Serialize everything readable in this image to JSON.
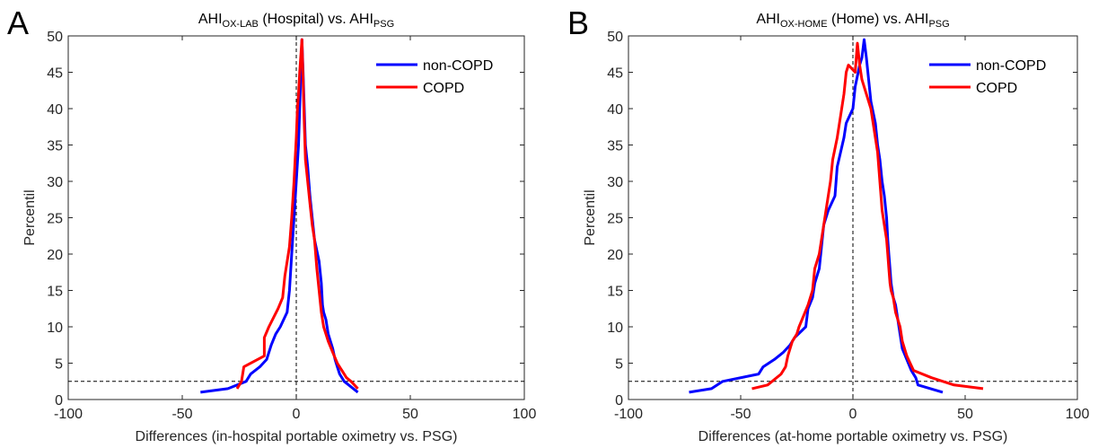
{
  "chart_data": [
    {
      "type": "line",
      "panel_label": "A",
      "title": {
        "part1": "AHI",
        "sub1": "OX-LAB",
        "part2": " (Hospital) vs. AHI",
        "sub2": "PSG"
      },
      "xlabel": "Differences (in-hospital portable oximetry vs. PSG)",
      "ylabel": "Percentil",
      "xlim": [
        -100,
        100
      ],
      "ylim": [
        0,
        50
      ],
      "xticks": [
        "-100",
        "-50",
        "0",
        "50",
        "100"
      ],
      "yticks": [
        "0",
        "5",
        "10",
        "15",
        "20",
        "25",
        "30",
        "35",
        "40",
        "45",
        "50"
      ],
      "reference_lines": {
        "x": 0,
        "y": 2.5
      },
      "legend_position": "top-right",
      "series": [
        {
          "name": "non-COPD",
          "color": "#0000ff",
          "points": [
            [
              -42,
              1
            ],
            [
              -30,
              1.5
            ],
            [
              -22,
              2.5
            ],
            [
              -20,
              3.5
            ],
            [
              -16,
              4.5
            ],
            [
              -13,
              5.5
            ],
            [
              -11,
              7.5
            ],
            [
              -9,
              9
            ],
            [
              -7,
              10
            ],
            [
              -4,
              12
            ],
            [
              -3,
              15
            ],
            [
              -2,
              20
            ],
            [
              -1,
              25
            ],
            [
              0,
              30
            ],
            [
              1,
              35
            ],
            [
              1.5,
              40
            ],
            [
              2,
              45
            ],
            [
              2.5,
              49.5
            ],
            [
              3,
              45
            ],
            [
              3.5,
              40
            ],
            [
              4,
              35
            ],
            [
              5,
              32
            ],
            [
              6,
              28
            ],
            [
              8,
              22
            ],
            [
              10,
              19
            ],
            [
              11,
              16
            ],
            [
              11.5,
              13
            ],
            [
              12,
              12
            ],
            [
              13,
              11
            ],
            [
              14,
              9
            ],
            [
              16,
              7
            ],
            [
              17,
              5.5
            ],
            [
              18,
              4.5
            ],
            [
              19,
              3.5
            ],
            [
              21,
              2.5
            ],
            [
              23,
              2
            ],
            [
              27,
              1
            ]
          ]
        },
        {
          "name": "COPD",
          "color": "#ff0000",
          "points": [
            [
              -26,
              1.5
            ],
            [
              -24,
              2.5
            ],
            [
              -23,
              4.5
            ],
            [
              -14,
              6
            ],
            [
              -14,
              8.5
            ],
            [
              -12,
              10
            ],
            [
              -8,
              12.5
            ],
            [
              -6,
              14
            ],
            [
              -5,
              17
            ],
            [
              -3,
              21
            ],
            [
              -2,
              25
            ],
            [
              -1,
              30
            ],
            [
              -0.5,
              33
            ],
            [
              0,
              36
            ],
            [
              0.5,
              40
            ],
            [
              1,
              42
            ],
            [
              1.5,
              45
            ],
            [
              2.5,
              49.5
            ],
            [
              3,
              44
            ],
            [
              3.5,
              38
            ],
            [
              4,
              33
            ],
            [
              5,
              30
            ],
            [
              6,
              27
            ],
            [
              7,
              24
            ],
            [
              8,
              22
            ],
            [
              9,
              18
            ],
            [
              10,
              15
            ],
            [
              11,
              12
            ],
            [
              12,
              10
            ],
            [
              14,
              8
            ],
            [
              16,
              6.5
            ],
            [
              18,
              5
            ],
            [
              20,
              4
            ],
            [
              22,
              3
            ],
            [
              24,
              2.5
            ],
            [
              27,
              1.5
            ]
          ]
        }
      ]
    },
    {
      "type": "line",
      "panel_label": "B",
      "title": {
        "part1": "AHI",
        "sub1": "OX-HOME",
        "part2": " (Home) vs. AHI",
        "sub2": "PSG"
      },
      "xlabel": "Differences (at-home portable oximetry vs. PSG)",
      "ylabel": "Percentil",
      "xlim": [
        -100,
        100
      ],
      "ylim": [
        0,
        50
      ],
      "xticks": [
        "-100",
        "-50",
        "0",
        "50",
        "100"
      ],
      "yticks": [
        "0",
        "5",
        "10",
        "15",
        "20",
        "25",
        "30",
        "35",
        "40",
        "45",
        "50"
      ],
      "reference_lines": {
        "x": 0,
        "y": 2.5
      },
      "legend_position": "top-right",
      "series": [
        {
          "name": "non-COPD",
          "color": "#0000ff",
          "points": [
            [
              -73,
              1
            ],
            [
              -63,
              1.5
            ],
            [
              -58,
              2.5
            ],
            [
              -42,
              3.5
            ],
            [
              -40,
              4.5
            ],
            [
              -35,
              5.5
            ],
            [
              -31,
              6.5
            ],
            [
              -28,
              7.5
            ],
            [
              -26,
              8.5
            ],
            [
              -21,
              10
            ],
            [
              -20,
              12.5
            ],
            [
              -18,
              14
            ],
            [
              -17,
              16
            ],
            [
              -15,
              18
            ],
            [
              -14,
              21
            ],
            [
              -13,
              24
            ],
            [
              -11,
              26
            ],
            [
              -8,
              28
            ],
            [
              -7,
              32
            ],
            [
              -4,
              36
            ],
            [
              -3,
              38
            ],
            [
              0,
              40
            ],
            [
              1,
              43
            ],
            [
              3,
              46
            ],
            [
              4,
              47
            ],
            [
              5,
              49.5
            ],
            [
              6,
              47
            ],
            [
              7,
              44
            ],
            [
              8,
              41
            ],
            [
              10,
              38
            ],
            [
              11,
              35
            ],
            [
              12,
              33
            ],
            [
              13,
              30
            ],
            [
              14,
              28
            ],
            [
              15,
              25
            ],
            [
              15.5,
              22
            ],
            [
              16,
              20
            ],
            [
              16.5,
              18
            ],
            [
              17,
              16
            ],
            [
              18,
              14
            ],
            [
              19,
              13
            ],
            [
              20,
              11
            ],
            [
              21,
              9
            ],
            [
              22,
              7
            ],
            [
              24,
              5.5
            ],
            [
              26,
              4
            ],
            [
              28,
              3
            ],
            [
              29,
              2
            ],
            [
              40,
              1
            ]
          ]
        },
        {
          "name": "COPD",
          "color": "#ff0000",
          "points": [
            [
              -45,
              1.5
            ],
            [
              -38,
              2
            ],
            [
              -36,
              2.5
            ],
            [
              -32,
              3.5
            ],
            [
              -30,
              4.5
            ],
            [
              -29,
              6
            ],
            [
              -28,
              7
            ],
            [
              -27,
              8
            ],
            [
              -25,
              9
            ],
            [
              -24,
              10
            ],
            [
              -20,
              13
            ],
            [
              -18,
              15
            ],
            [
              -17,
              18
            ],
            [
              -15,
              20
            ],
            [
              -14,
              22
            ],
            [
              -13,
              24
            ],
            [
              -12,
              26
            ],
            [
              -11,
              28
            ],
            [
              -10,
              30
            ],
            [
              -9,
              33
            ],
            [
              -7,
              36
            ],
            [
              -6,
              38
            ],
            [
              -5,
              40
            ],
            [
              -4,
              42
            ],
            [
              -3,
              45
            ],
            [
              -2,
              46
            ],
            [
              1,
              45
            ],
            [
              2,
              49
            ],
            [
              3,
              46
            ],
            [
              4,
              44
            ],
            [
              6,
              42
            ],
            [
              8,
              40
            ],
            [
              9,
              38
            ],
            [
              10,
              36
            ],
            [
              11,
              34
            ],
            [
              12,
              30
            ],
            [
              13,
              26
            ],
            [
              14,
              24
            ],
            [
              15,
              22
            ],
            [
              15.5,
              20
            ],
            [
              16,
              18
            ],
            [
              16.5,
              16
            ],
            [
              17,
              15
            ],
            [
              18,
              14
            ],
            [
              19,
              12
            ],
            [
              20,
              11
            ],
            [
              21,
              10
            ],
            [
              22,
              8
            ],
            [
              24,
              6
            ],
            [
              27,
              4
            ],
            [
              35,
              3
            ],
            [
              45,
              2
            ],
            [
              58,
              1.5
            ]
          ]
        }
      ]
    }
  ]
}
